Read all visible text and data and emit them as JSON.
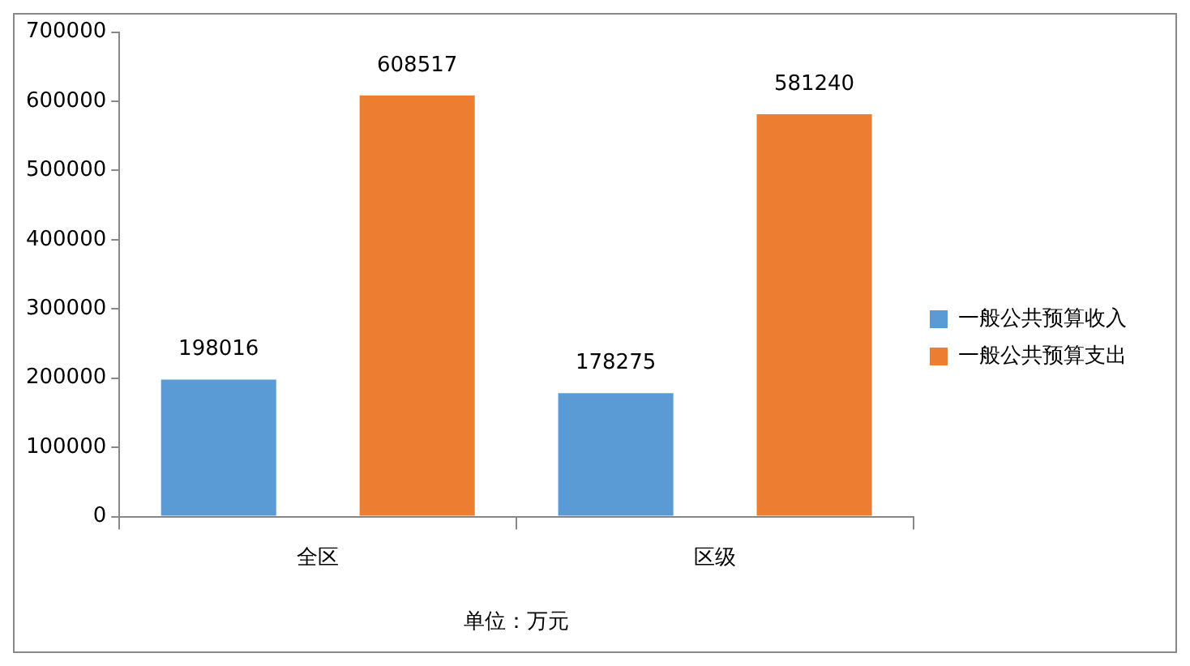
{
  "chart_data": {
    "type": "bar",
    "xlabel": "单位：万元",
    "categories": [
      "全区",
      "区级"
    ],
    "series": [
      {
        "name": "一般公共预算收入",
        "color": "#5b9bd5",
        "values": [
          198016,
          178275
        ]
      },
      {
        "name": "一般公共预算支出",
        "color": "#ed7d31",
        "values": [
          608517,
          581240
        ]
      }
    ],
    "ylim": [
      0,
      700000
    ],
    "yticks": [
      0,
      100000,
      200000,
      300000,
      400000,
      500000,
      600000,
      700000
    ],
    "grid": false,
    "legend": "right",
    "data_labels": true
  }
}
